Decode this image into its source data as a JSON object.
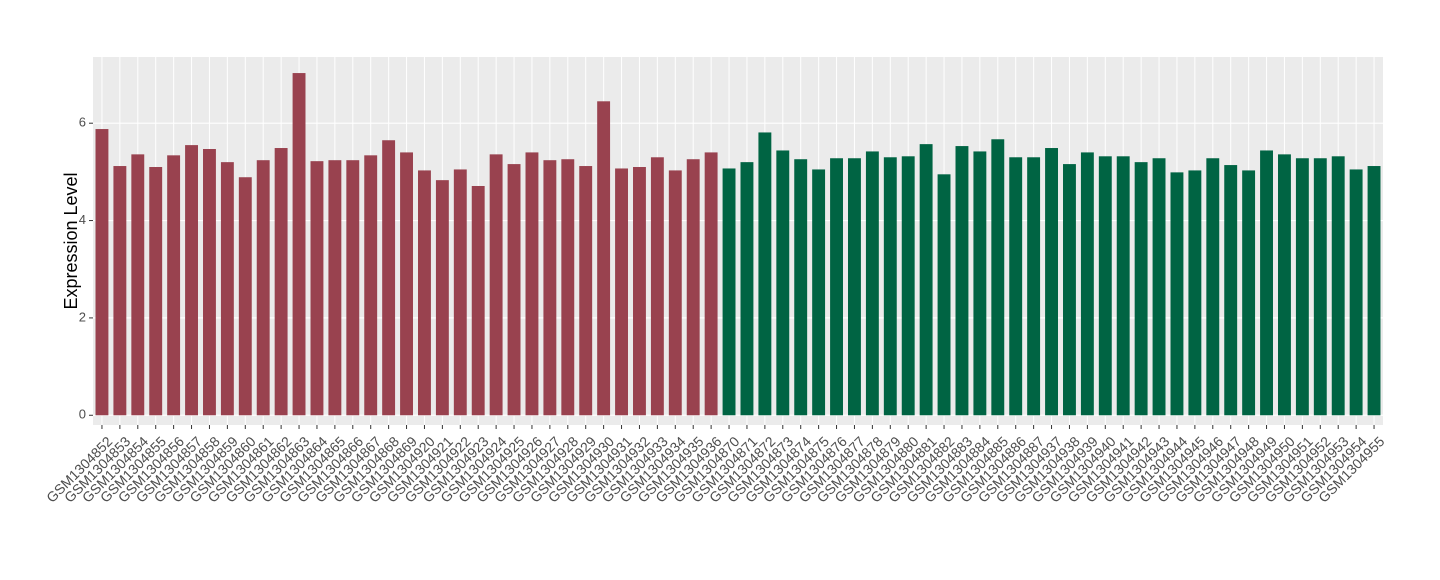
{
  "chart_data": {
    "type": "bar",
    "y_label": "Expression Level",
    "categories": [
      "GSM1304852",
      "GSM1304853",
      "GSM1304854",
      "GSM1304855",
      "GSM1304856",
      "GSM1304857",
      "GSM1304858",
      "GSM1304859",
      "GSM1304860",
      "GSM1304861",
      "GSM1304862",
      "GSM1304863",
      "GSM1304864",
      "GSM1304865",
      "GSM1304866",
      "GSM1304867",
      "GSM1304868",
      "GSM1304869",
      "GSM1304920",
      "GSM1304921",
      "GSM1304922",
      "GSM1304923",
      "GSM1304924",
      "GSM1304925",
      "GSM1304926",
      "GSM1304927",
      "GSM1304928",
      "GSM1304929",
      "GSM1304930",
      "GSM1304931",
      "GSM1304932",
      "GSM1304933",
      "GSM1304934",
      "GSM1304935",
      "GSM1304936",
      "GSM1304870",
      "GSM1304871",
      "GSM1304872",
      "GSM1304873",
      "GSM1304874",
      "GSM1304875",
      "GSM1304876",
      "GSM1304877",
      "GSM1304878",
      "GSM1304879",
      "GSM1304880",
      "GSM1304881",
      "GSM1304882",
      "GSM1304883",
      "GSM1304884",
      "GSM1304885",
      "GSM1304886",
      "GSM1304887",
      "GSM1304937",
      "GSM1304938",
      "GSM1304939",
      "GSM1304940",
      "GSM1304941",
      "GSM1304942",
      "GSM1304943",
      "GSM1304944",
      "GSM1304945",
      "GSM1304946",
      "GSM1304947",
      "GSM1304948",
      "GSM1304949",
      "GSM1304950",
      "GSM1304951",
      "GSM1304952",
      "GSM1304953",
      "GSM1304954",
      "GSM1304955"
    ],
    "series": [
      {
        "color": "#99424f",
        "values": [
          5.88,
          5.12,
          5.36,
          5.1,
          5.34,
          5.55,
          5.47,
          5.2,
          4.89,
          5.24,
          5.49,
          7.03,
          5.22,
          5.24,
          5.24,
          5.34,
          5.65,
          5.4,
          5.03,
          4.83,
          5.05,
          4.71,
          5.36,
          5.16,
          5.4,
          5.24,
          5.26,
          5.12,
          6.45,
          5.07,
          5.1,
          5.3,
          5.03,
          5.26,
          5.4,
          null,
          null,
          null,
          null,
          null,
          null,
          null,
          null,
          null,
          null,
          null,
          null,
          null,
          null,
          null,
          null,
          null,
          null,
          null,
          null,
          null,
          null,
          null,
          null,
          null,
          null,
          null,
          null,
          null,
          null,
          null,
          null,
          null,
          null,
          null,
          null,
          null
        ]
      },
      {
        "color": "#006443",
        "values": [
          null,
          null,
          null,
          null,
          null,
          null,
          null,
          null,
          null,
          null,
          null,
          null,
          null,
          null,
          null,
          null,
          null,
          null,
          null,
          null,
          null,
          null,
          null,
          null,
          null,
          null,
          null,
          null,
          null,
          null,
          null,
          null,
          null,
          null,
          null,
          5.07,
          5.2,
          5.81,
          5.44,
          5.26,
          5.05,
          5.28,
          5.28,
          5.42,
          5.3,
          5.32,
          5.57,
          4.95,
          5.53,
          5.42,
          5.67,
          5.3,
          5.3,
          5.49,
          5.16,
          5.4,
          5.32,
          5.32,
          5.2,
          5.28,
          4.99,
          5.03,
          5.28,
          5.14,
          5.03,
          5.44,
          5.36,
          5.28,
          5.28,
          5.32,
          5.05,
          5.12
        ]
      }
    ],
    "ylim": [
      -0.2,
      7.36
    ],
    "yticks": [
      0,
      2,
      4,
      6
    ],
    "grid": true
  }
}
